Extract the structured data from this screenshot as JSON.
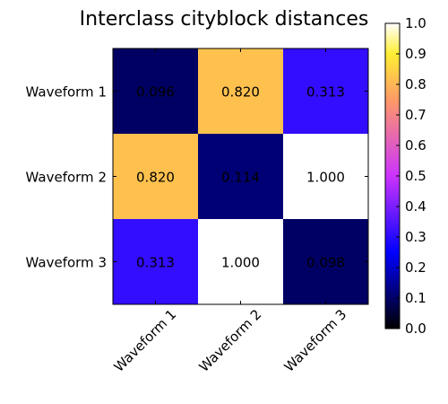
{
  "chart_data": {
    "type": "heatmap",
    "title": "Interclass cityblock distances",
    "row_labels": [
      "Waveform 1",
      "Waveform 2",
      "Waveform 3"
    ],
    "col_labels": [
      "Waveform 1",
      "Waveform 2",
      "Waveform 3"
    ],
    "values": [
      [
        0.096,
        0.82,
        0.313
      ],
      [
        0.82,
        0.114,
        1.0
      ],
      [
        0.313,
        1.0,
        0.098
      ]
    ],
    "cell_labels": [
      [
        "0.096",
        "0.820",
        "0.313"
      ],
      [
        "0.820",
        "0.114",
        "1.000"
      ],
      [
        "0.313",
        "1.000",
        "0.098"
      ]
    ],
    "colormap": "gnuplot2",
    "colorbar": {
      "range": [
        0.0,
        1.0
      ],
      "ticks": [
        "0.0",
        "0.1",
        "0.2",
        "0.3",
        "0.4",
        "0.5",
        "0.6",
        "0.7",
        "0.8",
        "0.9",
        "1.0"
      ]
    },
    "xtick_rotation_deg": 45
  }
}
